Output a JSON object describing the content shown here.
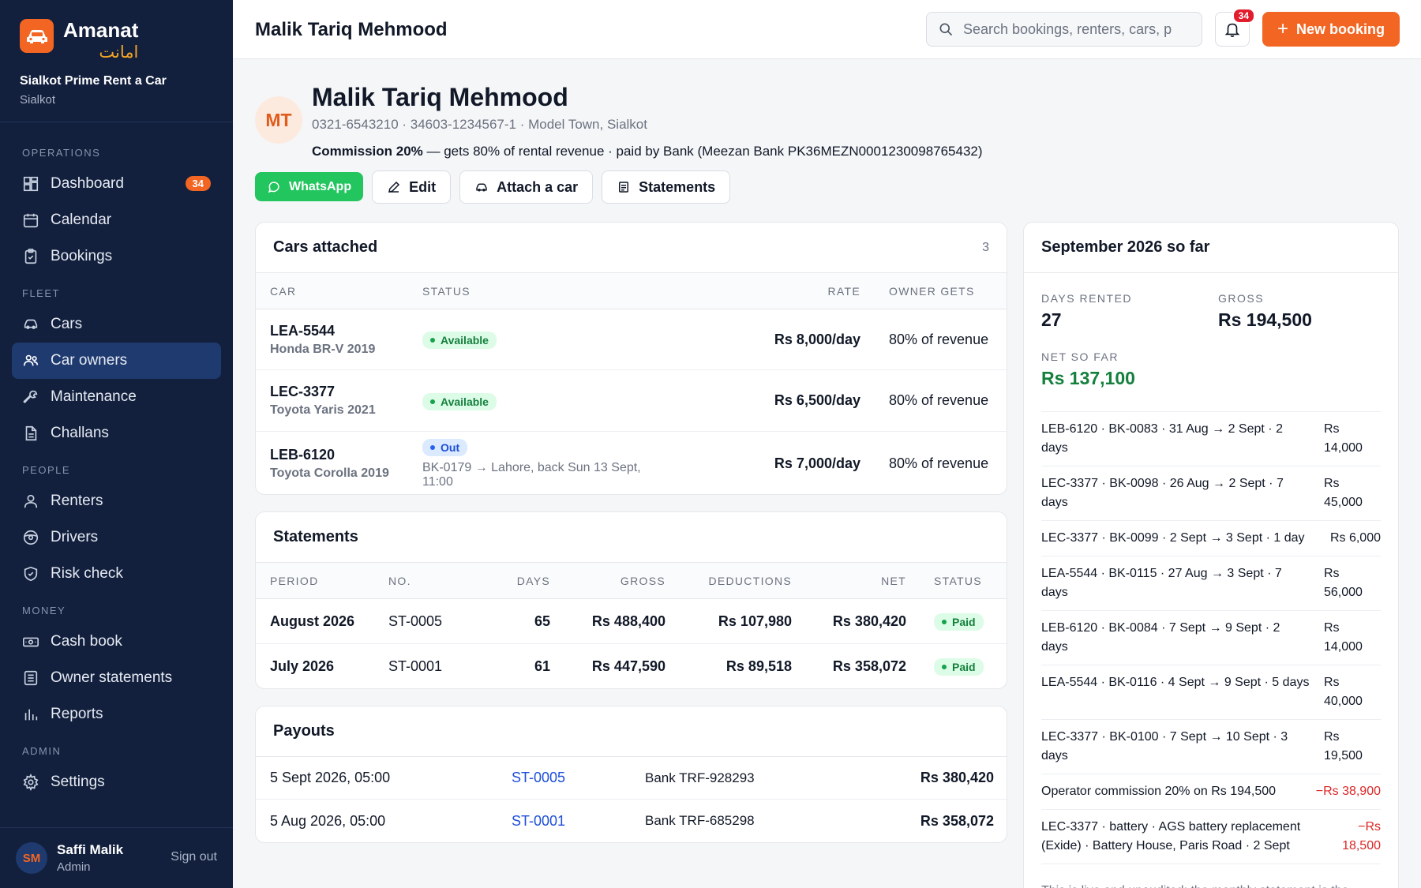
{
  "brand": {
    "name": "Amanat",
    "urdu": "امانت",
    "company": "Sialkot Prime Rent a Car",
    "city": "Sialkot"
  },
  "nav": {
    "sections": [
      {
        "label": "OPERATIONS",
        "items": [
          {
            "label": "Dashboard",
            "icon": "dashboard-icon",
            "badge": "34"
          },
          {
            "label": "Calendar",
            "icon": "calendar-icon"
          },
          {
            "label": "Bookings",
            "icon": "clipboard-icon"
          }
        ]
      },
      {
        "label": "FLEET",
        "items": [
          {
            "label": "Cars",
            "icon": "car-icon"
          },
          {
            "label": "Car owners",
            "icon": "users-icon",
            "active": true
          },
          {
            "label": "Maintenance",
            "icon": "wrench-icon"
          },
          {
            "label": "Challans",
            "icon": "document-icon"
          }
        ]
      },
      {
        "label": "PEOPLE",
        "items": [
          {
            "label": "Renters",
            "icon": "user-icon"
          },
          {
            "label": "Drivers",
            "icon": "steering-wheel-icon"
          },
          {
            "label": "Risk check",
            "icon": "shield-icon"
          }
        ]
      },
      {
        "label": "MONEY",
        "items": [
          {
            "label": "Cash book",
            "icon": "banknote-icon"
          },
          {
            "label": "Owner statements",
            "icon": "statement-icon"
          },
          {
            "label": "Reports",
            "icon": "bar-chart-icon"
          }
        ]
      },
      {
        "label": "ADMIN",
        "items": [
          {
            "label": "Settings",
            "icon": "gear-icon"
          }
        ]
      }
    ]
  },
  "user": {
    "initials": "SM",
    "name": "Saffi Malik",
    "role": "Admin",
    "sign_out": "Sign out"
  },
  "header": {
    "title": "Malik Tariq Mehmood",
    "search_placeholder": "Search bookings, renters, cars, p",
    "notif_count": "34",
    "new_booking": "New booking"
  },
  "owner": {
    "initials": "MT",
    "name": "Malik Tariq Mehmood",
    "contact": "0321-6543210 · 34603-1234567-1 · Model Town, Sialkot",
    "commission_label": "Commission 20%",
    "terms_rest": " — gets 80% of rental revenue · paid by Bank (Meezan Bank PK36MEZN0001230098765432)",
    "actions": {
      "whatsapp": "WhatsApp",
      "edit": "Edit",
      "attach": "Attach a car",
      "statements": "Statements"
    }
  },
  "cars": {
    "title": "Cars attached",
    "count": "3",
    "headers": {
      "car": "CAR",
      "status": "STATUS",
      "rate": "RATE",
      "owner_gets": "OWNER GETS"
    },
    "rows": [
      {
        "plate": "LEA-5544",
        "model": "Honda BR-V 2019",
        "status": "Available",
        "status_kind": "green",
        "note": "",
        "rate": "Rs 8,000/day",
        "owner_gets": "80% of revenue"
      },
      {
        "plate": "LEC-3377",
        "model": "Toyota Yaris 2021",
        "status": "Available",
        "status_kind": "green",
        "note": "",
        "rate": "Rs 6,500/day",
        "owner_gets": "80% of revenue"
      },
      {
        "plate": "LEB-6120",
        "model": "Toyota Corolla 2019",
        "status": "Out",
        "status_kind": "blue",
        "note": "BK-0179 → Lahore, back Sun 13 Sept, 11:00",
        "rate": "Rs 7,000/day",
        "owner_gets": "80% of revenue"
      }
    ]
  },
  "statements": {
    "title": "Statements",
    "headers": {
      "period": "PERIOD",
      "no": "NO.",
      "days": "DAYS",
      "gross": "GROSS",
      "deductions": "DEDUCTIONS",
      "net": "NET",
      "status": "STATUS"
    },
    "rows": [
      {
        "period": "August 2026",
        "no": "ST-0005",
        "days": "65",
        "gross": "Rs 488,400",
        "deductions": "Rs 107,980",
        "net": "Rs 380,420",
        "status": "Paid"
      },
      {
        "period": "July 2026",
        "no": "ST-0001",
        "days": "61",
        "gross": "Rs 447,590",
        "deductions": "Rs 89,518",
        "net": "Rs 358,072",
        "status": "Paid"
      }
    ]
  },
  "payouts": {
    "title": "Payouts",
    "rows": [
      {
        "date": "5 Sept 2026, 05:00",
        "statement": "ST-0005",
        "ref": "Bank TRF-928293",
        "amount": "Rs 380,420"
      },
      {
        "date": "5 Aug 2026, 05:00",
        "statement": "ST-0001",
        "ref": "Bank TRF-685298",
        "amount": "Rs 358,072"
      }
    ]
  },
  "summary": {
    "title": "September 2026 so far",
    "days_label": "DAYS RENTED",
    "days_value": "27",
    "gross_label": "GROSS",
    "gross_value": "Rs 194,500",
    "net_label": "NET SO FAR",
    "net_value": "Rs 137,100",
    "ledger": [
      {
        "desc": "LEB-6120 · BK-0083 · 31 Aug → 2 Sept · 2 days",
        "amount": "Rs 14,000",
        "negative": false
      },
      {
        "desc": "LEC-3377 · BK-0098 · 26 Aug → 2 Sept · 7 days",
        "amount": "Rs 45,000",
        "negative": false
      },
      {
        "desc": "LEC-3377 · BK-0099 · 2 Sept → 3 Sept · 1 day",
        "amount": "Rs 6,000",
        "negative": false
      },
      {
        "desc": "LEA-5544 · BK-0115 · 27 Aug → 3 Sept · 7 days",
        "amount": "Rs 56,000",
        "negative": false
      },
      {
        "desc": "LEB-6120 · BK-0084 · 7 Sept → 9 Sept · 2 days",
        "amount": "Rs 14,000",
        "negative": false
      },
      {
        "desc": "LEA-5544 · BK-0116 · 4 Sept → 9 Sept · 5 days",
        "amount": "Rs 40,000",
        "negative": false
      },
      {
        "desc": "LEC-3377 · BK-0100 · 7 Sept → 10 Sept · 3 days",
        "amount": "Rs 19,500",
        "negative": false
      },
      {
        "desc": "Operator commission 20% on Rs 194,500",
        "amount": "−Rs 38,900",
        "negative": true
      },
      {
        "desc": "LEC-3377 · battery · AGS battery replacement (Exide) · Battery House, Paris Road · 2 Sept",
        "amount": "−Rs 18,500",
        "negative": true
      }
    ],
    "note": "This is live and unaudited; the monthly statement is the official figure."
  },
  "colors": {
    "sidebar": "#12203d",
    "accent": "#f26522",
    "active": "#1e3a6e",
    "positive": "#15803d",
    "negative": "#dc2626"
  }
}
